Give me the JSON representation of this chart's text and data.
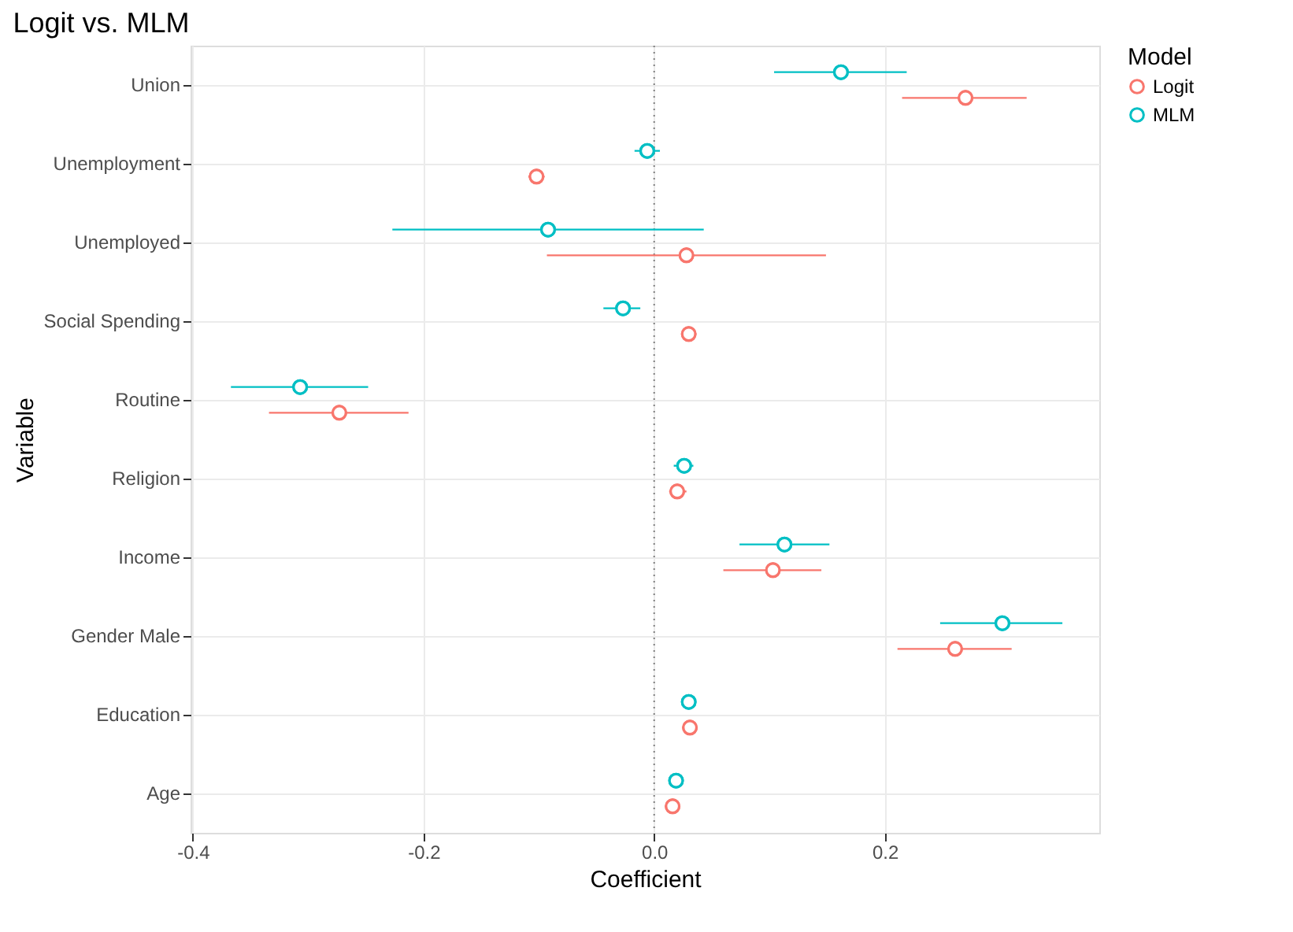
{
  "chart_data": {
    "type": "scatter",
    "orientation": "horizontal",
    "title": "Logit vs. MLM",
    "xlabel": "Coefficient",
    "ylabel": "Variable",
    "legend_title": "Model",
    "legend": "right",
    "grid": true,
    "marker": "circle",
    "categories": [
      "Union",
      "Unemployment",
      "Unemployed",
      "Social Spending",
      "Routine",
      "Religion",
      "Income",
      "Gender Male",
      "Education",
      "Age"
    ],
    "xlim": [
      -0.402,
      0.386
    ],
    "xticks": [
      -0.4,
      -0.2,
      {
        "value": 0,
        "label": "0.0"
      },
      0.2
    ],
    "ref_lines": [
      {
        "axis": "x",
        "value": 0,
        "line_style": "dotted",
        "color": "#7f7f7f"
      }
    ],
    "series": [
      {
        "name": "Logit",
        "color": "#f8766d",
        "values": [
          0.27,
          -0.102,
          0.028,
          0.03,
          -0.273,
          0.02,
          0.103,
          0.261,
          0.031,
          0.016
        ],
        "errors": [
          [
            0.215,
            0.323
          ],
          [
            -0.109,
            -0.095
          ],
          [
            -0.093,
            0.149
          ],
          null,
          [
            -0.334,
            -0.213
          ],
          [
            0.013,
            0.028
          ],
          [
            0.06,
            0.145
          ],
          [
            0.211,
            0.31
          ],
          null,
          null
        ]
      },
      {
        "name": "MLM",
        "color": "#00bfc4",
        "values": [
          0.162,
          -0.006,
          -0.092,
          -0.027,
          -0.307,
          0.026,
          0.113,
          0.302,
          0.03,
          0.019
        ],
        "errors": [
          [
            0.104,
            0.219
          ],
          [
            -0.017,
            0.005
          ],
          [
            -0.227,
            0.043
          ],
          [
            -0.044,
            -0.012
          ],
          [
            -0.367,
            -0.248
          ],
          [
            0.017,
            0.034
          ],
          [
            0.074,
            0.152
          ],
          [
            0.248,
            0.354
          ],
          null,
          null
        ]
      }
    ]
  }
}
